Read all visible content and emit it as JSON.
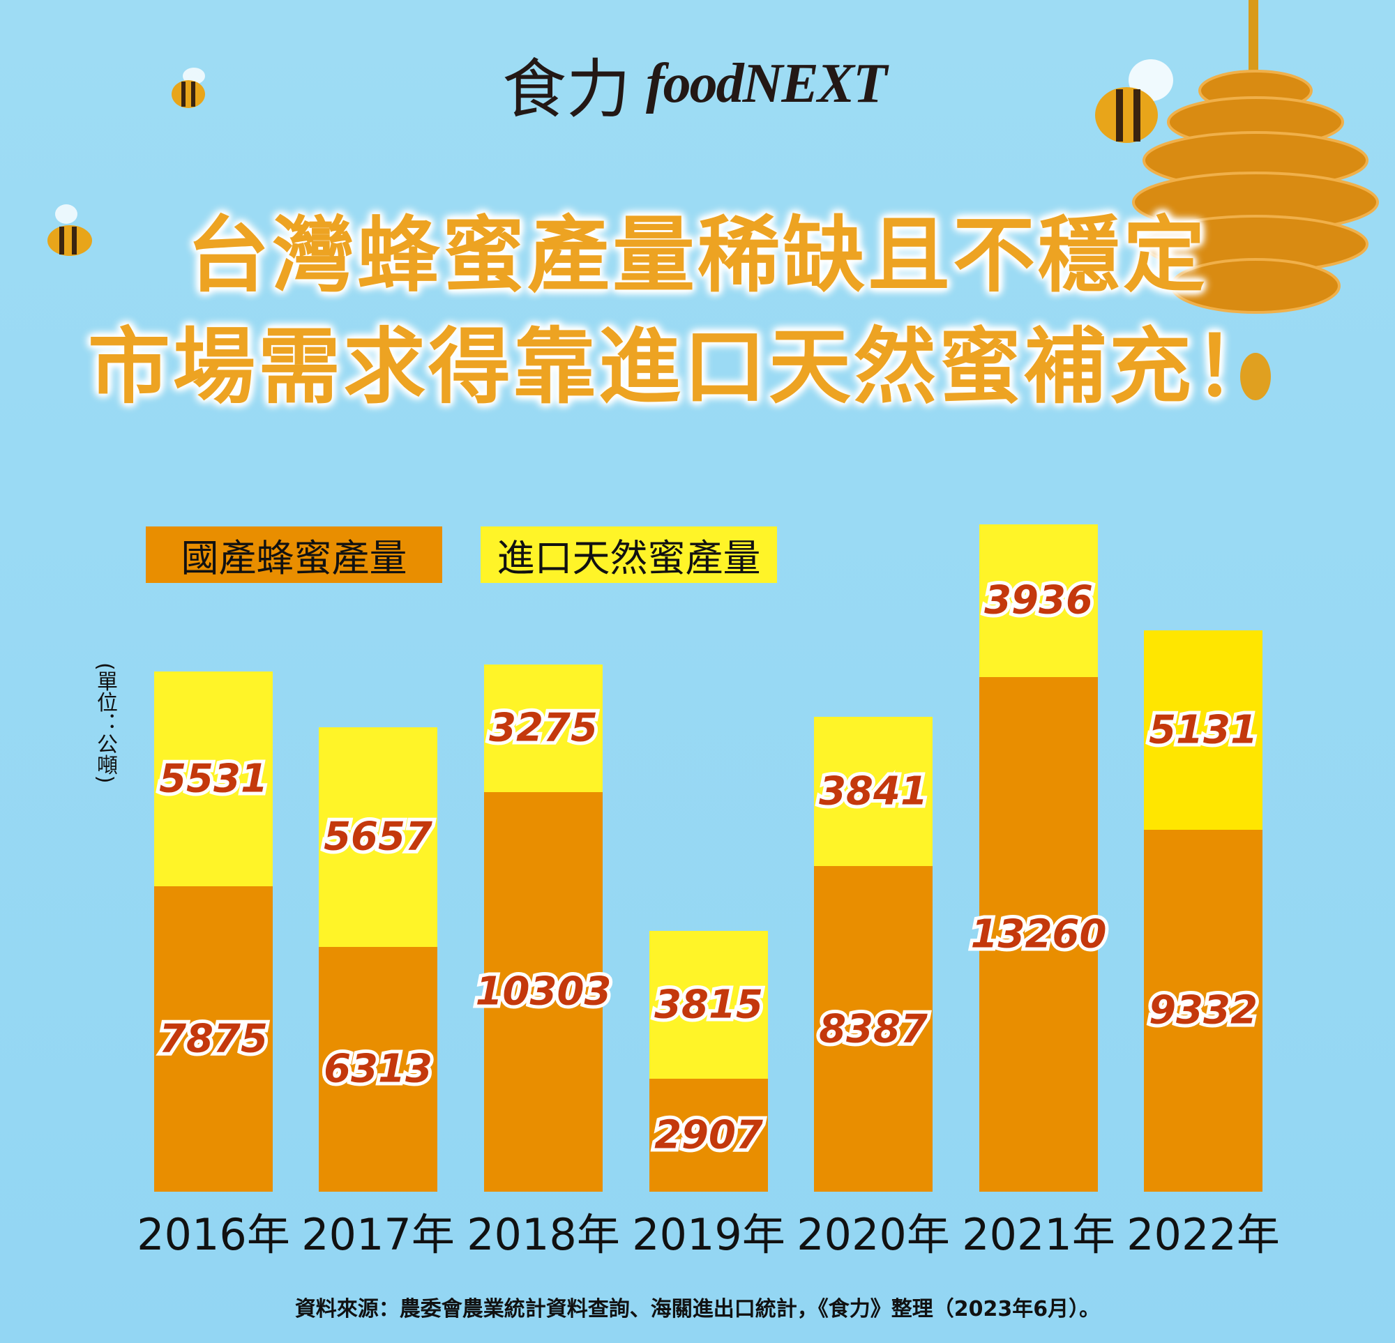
{
  "logo": {
    "cn": "食力",
    "en": "foodNEXT"
  },
  "title": {
    "line1": "台灣蜂蜜產量稀缺且不穩定",
    "line2": "市場需求得靠進口天然蜜補充！"
  },
  "colors": {
    "domestic": "#e98e00",
    "imported": "#fff428",
    "imported_2022": "#ffe600",
    "value_label": "#c4380c",
    "background": "#9edcf4"
  },
  "chart_data": {
    "type": "bar",
    "stacked": true,
    "categories": [
      "2016年",
      "2017年",
      "2018年",
      "2019年",
      "2020年",
      "2021年",
      "2022年"
    ],
    "series": [
      {
        "name": "國產蜂蜜產量",
        "values": [
          7875,
          6313,
          10303,
          2907,
          8387,
          13260,
          9332
        ]
      },
      {
        "name": "進口天然蜜產量",
        "values": [
          5531,
          5657,
          3275,
          3815,
          3841,
          3936,
          5131
        ]
      }
    ],
    "ylabel": "(單位：公噸)",
    "legend_placement": "top-left",
    "grid": false
  },
  "footer": "資料來源：農委會農業統計資料查詢、海關進出口統計，《食力》整理（2023年6月）。"
}
